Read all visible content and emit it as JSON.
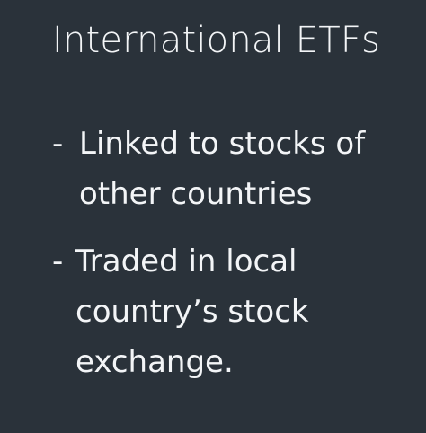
{
  "slide": {
    "title": "International ETFs",
    "bullet_marker": "-",
    "bullets": [
      "Linked to stocks of\nother countries",
      "Traded in local\ncountry’s stock\nexchange."
    ]
  }
}
